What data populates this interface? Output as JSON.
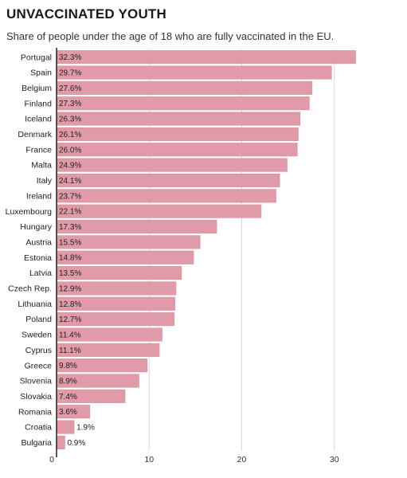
{
  "chart_data": {
    "type": "bar",
    "orientation": "horizontal",
    "title": "UNVACCINATED YOUTH",
    "subtitle": "Share of people under the age of 18 who are fully vaccinated in the EU.",
    "categories": [
      "Portugal",
      "Spain",
      "Belgium",
      "Finland",
      "Iceland",
      "Denmark",
      "France",
      "Malta",
      "Italy",
      "Ireland",
      "Luxembourg",
      "Hungary",
      "Austria",
      "Estonia",
      "Latvia",
      "Czech Rep.",
      "Lithuania",
      "Poland",
      "Sweden",
      "Cyprus",
      "Greece",
      "Slovenia",
      "Slovakia",
      "Romania",
      "Croatia",
      "Bulgaria"
    ],
    "values": [
      32.3,
      29.7,
      27.6,
      27.3,
      26.3,
      26.1,
      26.0,
      24.9,
      24.1,
      23.7,
      22.1,
      17.3,
      15.5,
      14.8,
      13.5,
      12.9,
      12.8,
      12.7,
      11.4,
      11.1,
      9.8,
      8.9,
      7.4,
      3.6,
      1.9,
      0.9
    ],
    "value_labels": [
      "32.3%",
      "29.7%",
      "27.6%",
      "27.3%",
      "26.3%",
      "26.1%",
      "26.0%",
      "24.9%",
      "24.1%",
      "23.7%",
      "22.1%",
      "17.3%",
      "15.5%",
      "14.8%",
      "13.5%",
      "12.9%",
      "12.8%",
      "12.7%",
      "11.4%",
      "11.1%",
      "9.8%",
      "8.9%",
      "7.4%",
      "3.6%",
      "1.9%",
      "0.9%"
    ],
    "xticks": [
      "0",
      "10",
      "20",
      "30"
    ],
    "xlim": [
      0,
      33.2
    ],
    "grid": true,
    "colors": {
      "bar": "#e09aa8",
      "bar_edge": "#d48595",
      "axis": "#222222",
      "grid": "#d9d9d9"
    }
  }
}
